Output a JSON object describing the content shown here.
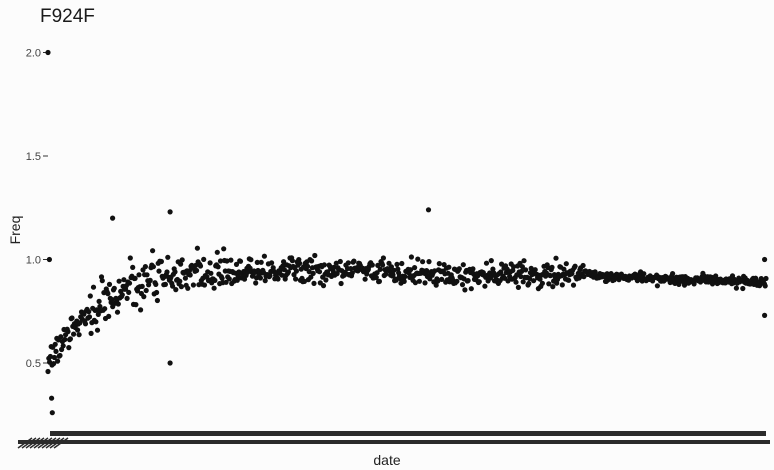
{
  "chart_data": {
    "type": "scatter",
    "title": "F924F",
    "xlabel": "date",
    "ylabel": "Freq",
    "ylim": [
      0.2,
      2.05
    ],
    "yticks": [
      0.5,
      1.0,
      1.5,
      2.0
    ],
    "ytick_labels": [
      "0.5",
      "1.0",
      "1.5",
      "2.0"
    ],
    "grid": false,
    "legend": "none",
    "point_color": "#111111",
    "n_points": 900,
    "x_tick_labels_overlapping": true,
    "trend_profile": [
      {
        "fraction": 0.0,
        "y": 0.5
      },
      {
        "fraction": 0.03,
        "y": 0.65
      },
      {
        "fraction": 0.08,
        "y": 0.8
      },
      {
        "fraction": 0.15,
        "y": 0.92
      },
      {
        "fraction": 0.35,
        "y": 0.95
      },
      {
        "fraction": 0.6,
        "y": 0.93
      },
      {
        "fraction": 0.75,
        "y": 0.92
      },
      {
        "fraction": 1.0,
        "y": 0.89
      }
    ],
    "highlight_points": [
      {
        "fraction": 0.0,
        "y": 2.0
      },
      {
        "fraction": 0.002,
        "y": 1.0
      },
      {
        "fraction": 0.006,
        "y": 0.26
      },
      {
        "fraction": 0.005,
        "y": 0.33
      },
      {
        "fraction": 0.17,
        "y": 0.5
      },
      {
        "fraction": 0.53,
        "y": 1.24
      },
      {
        "fraction": 0.17,
        "y": 1.23
      },
      {
        "fraction": 0.09,
        "y": 1.2
      },
      {
        "fraction": 0.998,
        "y": 0.73
      },
      {
        "fraction": 0.998,
        "y": 1.0
      }
    ]
  }
}
